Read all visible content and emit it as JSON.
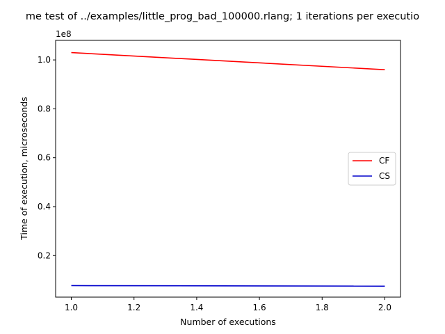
{
  "chart_data": {
    "type": "line",
    "title": "me test of ../examples/little_prog_bad_100000.rlang; 1 iterations per executio",
    "xlabel": "Number of executions",
    "ylabel": "Time of execution, microseconds",
    "y_offset_label": "1e8",
    "xlim": [
      0.95,
      2.05
    ],
    "ylim": [
      3000000,
      108000000
    ],
    "x_ticks": [
      1.0,
      1.2,
      1.4,
      1.6,
      1.8,
      2.0
    ],
    "x_tick_labels": [
      "1.0",
      "1.2",
      "1.4",
      "1.6",
      "1.8",
      "2.0"
    ],
    "y_ticks": [
      20000000,
      40000000,
      60000000,
      80000000,
      100000000
    ],
    "y_tick_labels": [
      "0.2",
      "0.4",
      "0.6",
      "0.8",
      "1.0"
    ],
    "grid": false,
    "legend_position": "center-right",
    "series": [
      {
        "name": "CF",
        "color": "#ff0000",
        "x": [
          1.0,
          2.0
        ],
        "y": [
          103000000,
          96000000
        ]
      },
      {
        "name": "CS",
        "color": "#0000cc",
        "x": [
          1.0,
          2.0
        ],
        "y": [
          7700000,
          7500000
        ]
      }
    ]
  }
}
